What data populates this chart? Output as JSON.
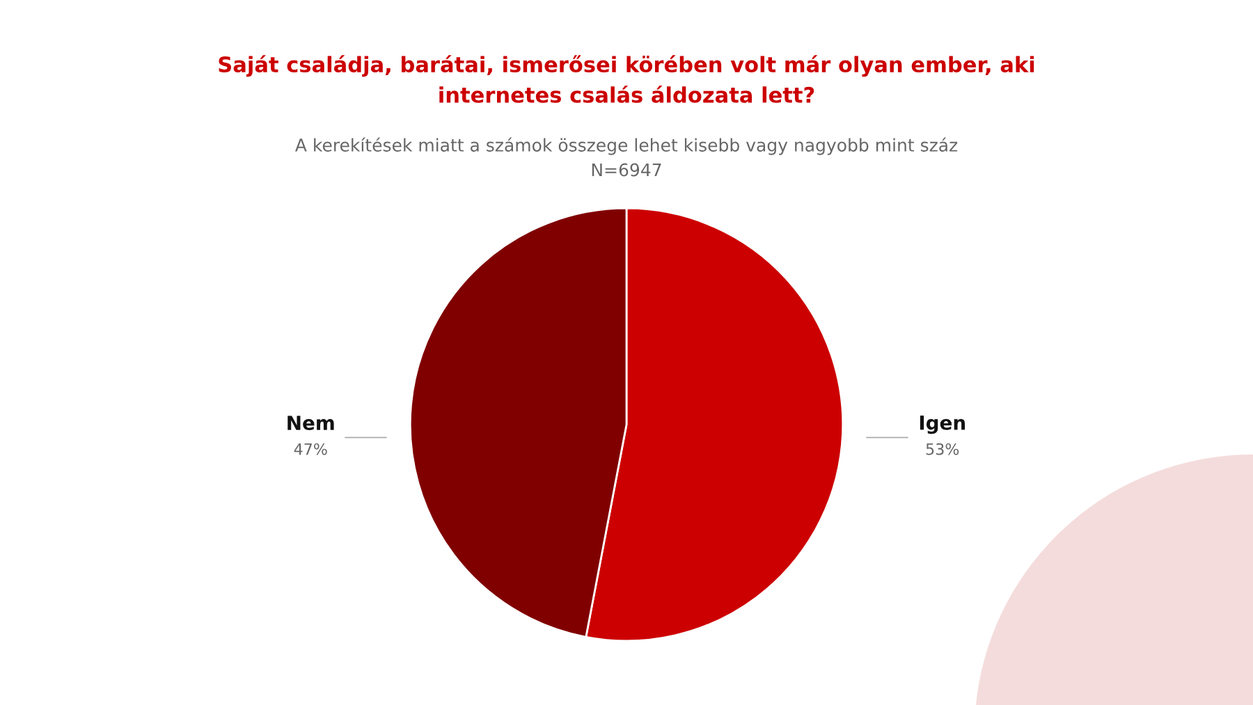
{
  "chart_data": {
    "type": "pie",
    "title": "Saját családja, barátai, ismerősei körében volt már olyan ember, aki\ninternetes csalás áldozata lett?",
    "subtitle": "A kerekítések miatt a számok összege lehet kisebb vagy nagyobb mint száz\nN=6947",
    "categories": [
      "Igen",
      "Nem"
    ],
    "values": [
      53,
      47
    ],
    "colors": [
      "#cc0000",
      "#800000"
    ],
    "value_labels": [
      "53%",
      "47%"
    ]
  }
}
